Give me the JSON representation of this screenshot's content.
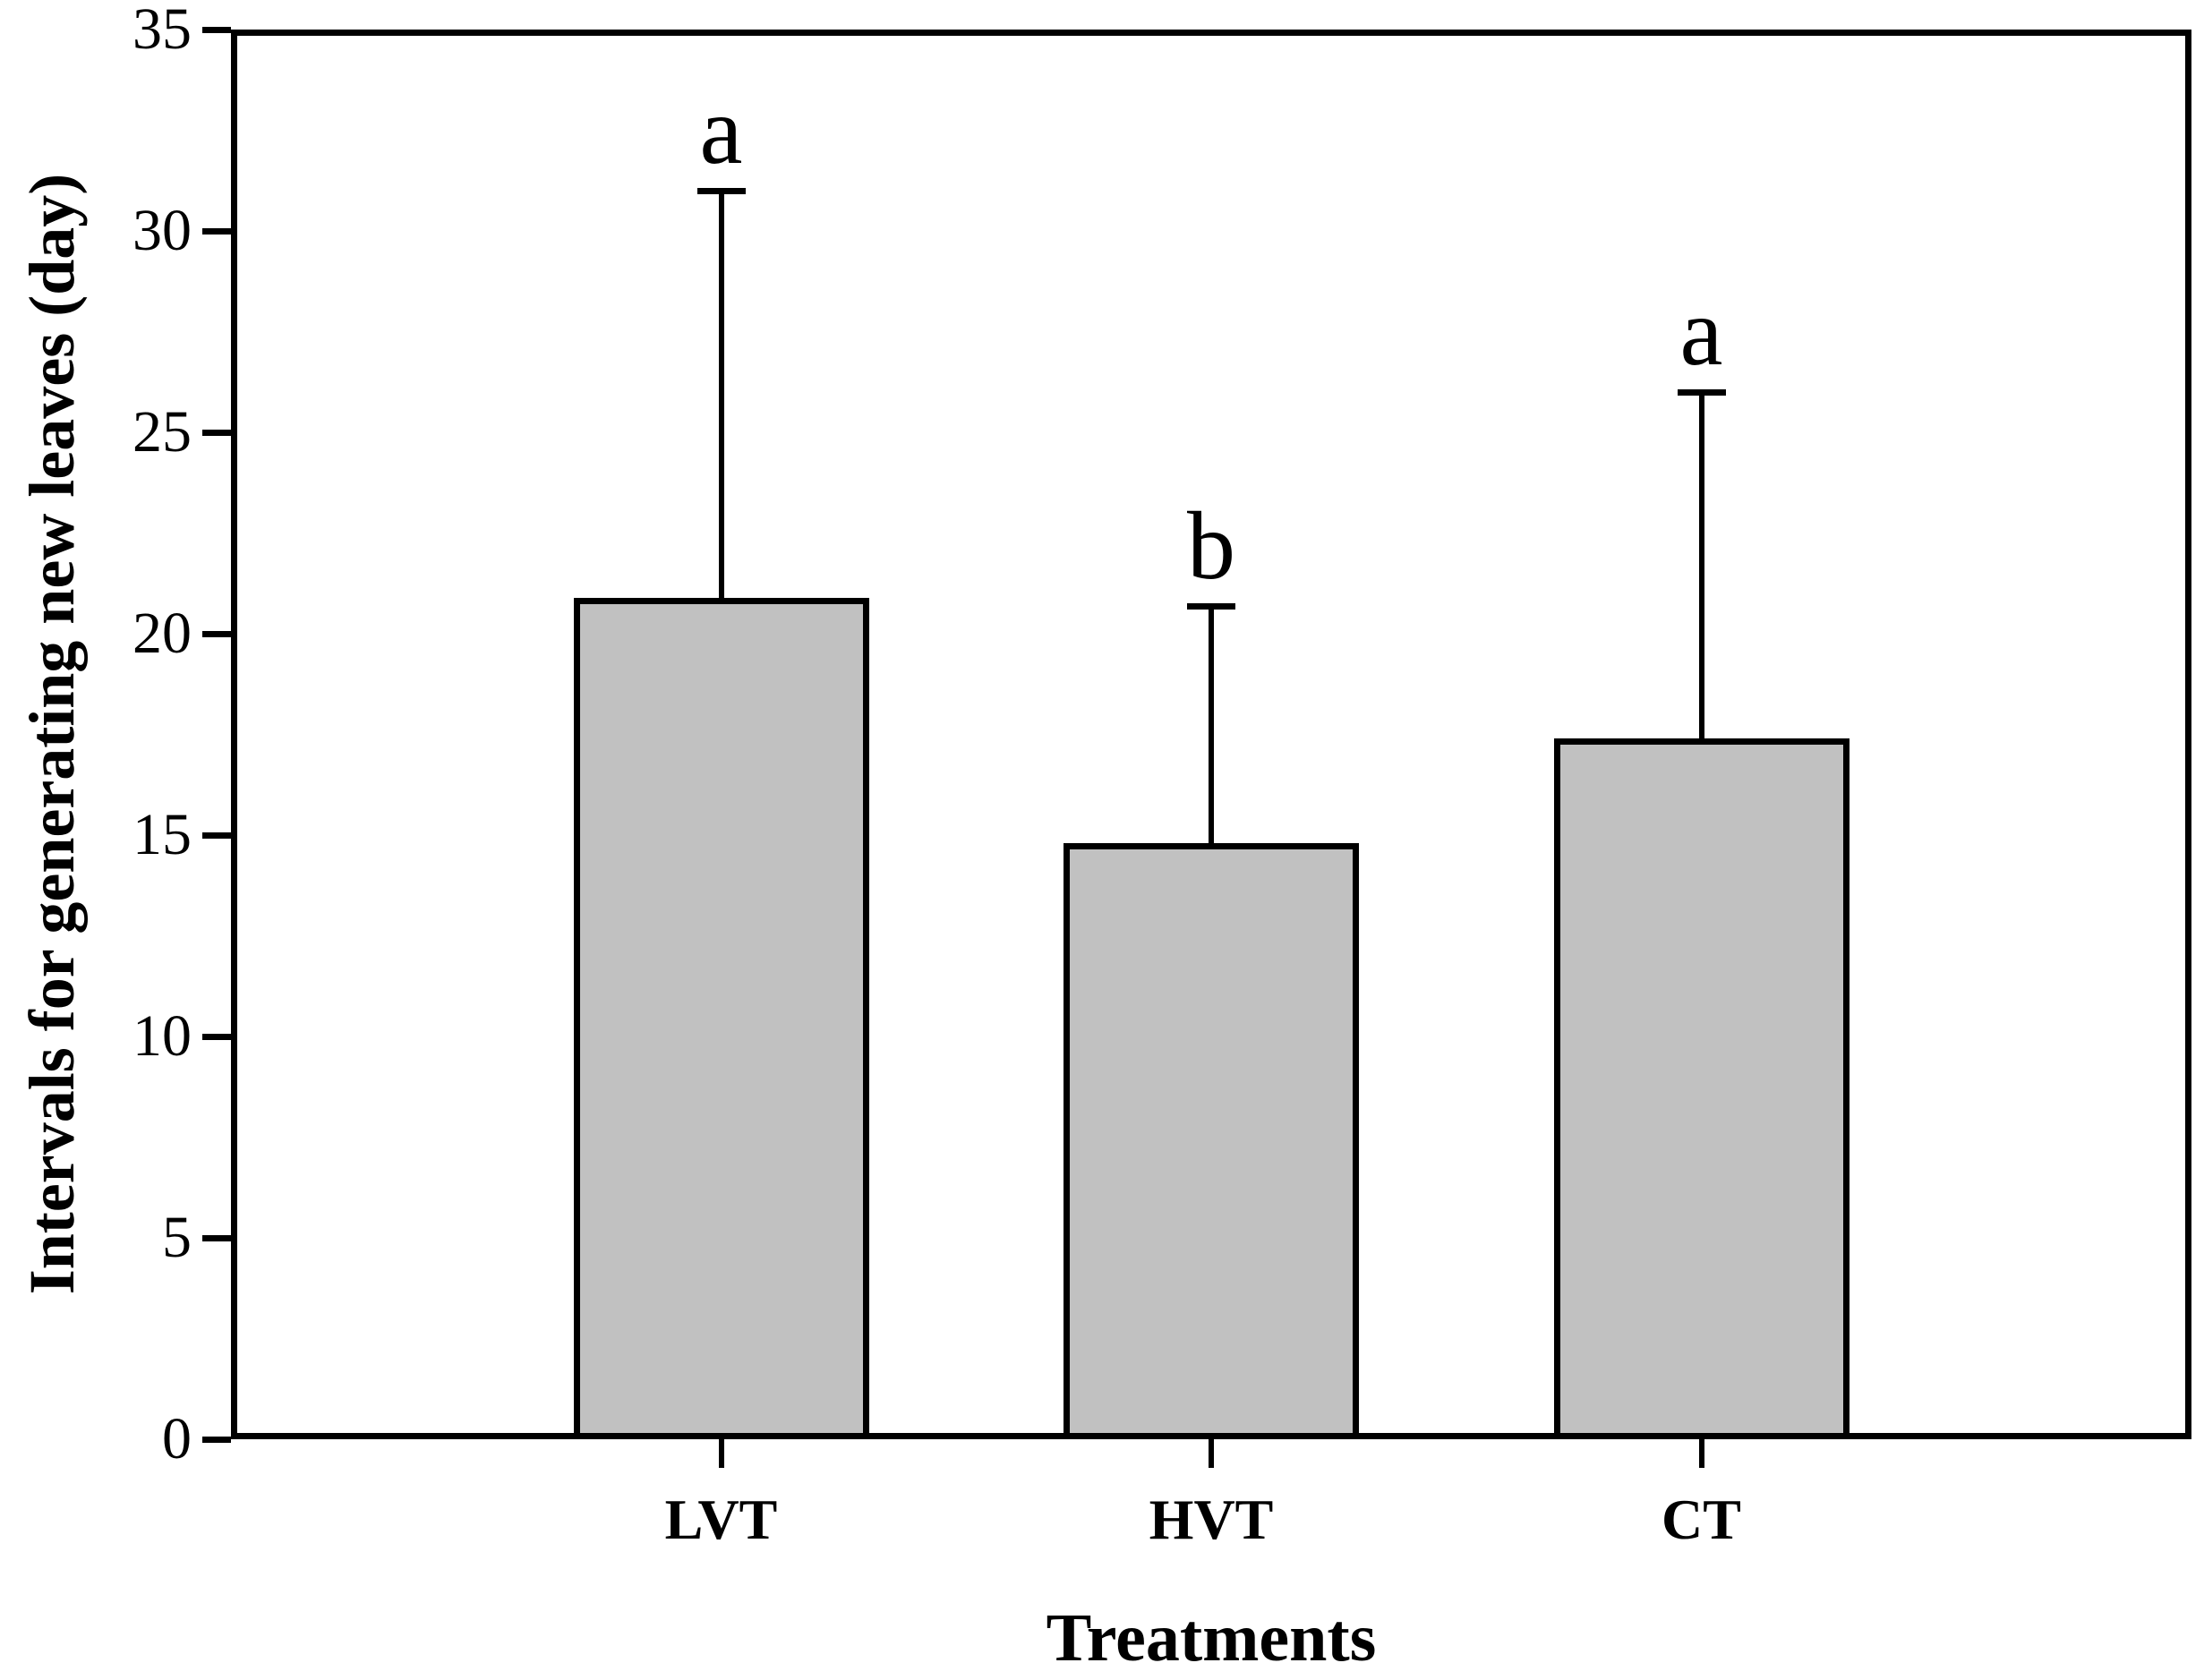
{
  "figure": {
    "background_color": "#ffffff",
    "frame_color": "#000000"
  },
  "chart_data": {
    "type": "bar",
    "title": "",
    "categories": [
      "LVT",
      "HVT",
      "CT"
    ],
    "values": [
      20.9,
      14.8,
      17.4
    ],
    "error_plus": [
      10.1,
      5.9,
      8.6
    ],
    "error_bar_tops": [
      31.0,
      20.7,
      26.0
    ],
    "significance_letters": [
      "a",
      "b",
      "a"
    ],
    "xlabel": "Treatments",
    "ylabel": "Intervals for generating new leaves (day)",
    "ylim": [
      0,
      35
    ],
    "yticks": [
      0,
      5,
      10,
      15,
      20,
      25,
      30,
      35
    ],
    "ytick_labels": [
      "0",
      "5",
      "10",
      "15",
      "20",
      "25",
      "30",
      "35"
    ],
    "grid": false,
    "legend_position": "none",
    "bar_fill_color": "#c1c1c1",
    "bar_edge_color": "#000000",
    "frame": "full-box"
  }
}
